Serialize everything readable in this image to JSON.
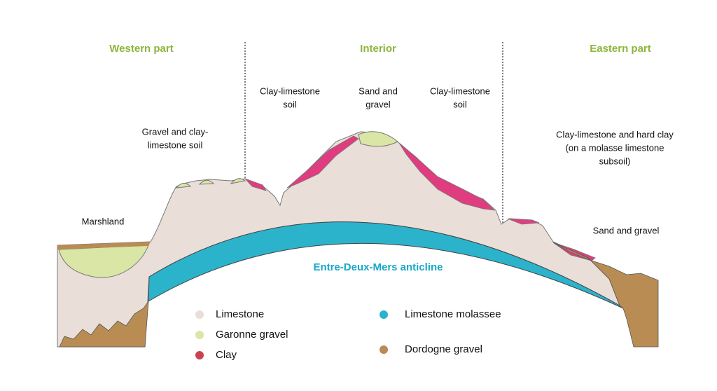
{
  "sections": [
    {
      "label": "Western part"
    },
    {
      "label": "Interior"
    },
    {
      "label": "Eastern part"
    }
  ],
  "annotations": [
    {
      "lines": [
        "Gravel and clay-",
        "limestone soil"
      ]
    },
    {
      "lines": [
        "Clay-limestone",
        "soil"
      ]
    },
    {
      "lines": [
        "Sand and",
        "gravel"
      ]
    },
    {
      "lines": [
        "Clay-limestone",
        "soil"
      ]
    },
    {
      "lines": [
        "Clay-limestone and hard clay",
        "(on a molasse limestone",
        "subsoil)"
      ]
    },
    {
      "lines": [
        "Marshland"
      ]
    },
    {
      "lines": [
        "Sand and gravel"
      ]
    }
  ],
  "anticline_label": "Entre-Deux-Mers anticline",
  "legend": [
    {
      "label": "Limestone",
      "color": "#e9ded8"
    },
    {
      "label": "Garonne gravel",
      "color": "#d9e6a6"
    },
    {
      "label": "Clay",
      "color": "#c9424f"
    },
    {
      "label": "Limestone molassee",
      "color": "#2bb3cc"
    },
    {
      "label": "Dordogne gravel",
      "color": "#b98c54"
    }
  ]
}
